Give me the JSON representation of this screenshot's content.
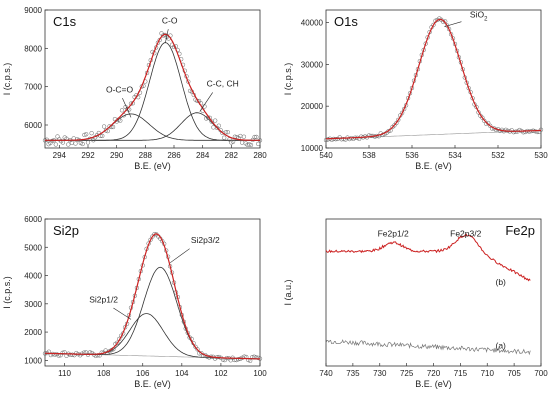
{
  "chart_data": [
    {
      "type": "line",
      "title": "C1s",
      "xlabel": "B.E. (eV)",
      "ylabel": "I (c.p.s.)",
      "xlim": [
        295,
        280
      ],
      "ylim": [
        5400,
        9000
      ],
      "xticks": [
        294,
        292,
        290,
        288,
        286,
        284,
        282,
        280
      ],
      "yticks": [
        6000,
        7000,
        8000,
        9000
      ],
      "baseline": 5600,
      "peaks": [
        {
          "label": "C-O",
          "center": 286.6,
          "height": 2550,
          "fwhm": 2.6
        },
        {
          "label": "O-C=O",
          "center": 289.0,
          "height": 690,
          "fwhm": 3.0
        },
        {
          "label": "C-C, CH",
          "center": 284.4,
          "height": 720,
          "fwhm": 2.6
        }
      ],
      "annotations": [
        "O-C=O",
        "C-O",
        "C-C, CH"
      ],
      "series": [
        {
          "role": "data",
          "style": "open-circles"
        },
        {
          "role": "envelope-fit",
          "color": "#cc2222"
        },
        {
          "role": "components",
          "color": "#333333"
        }
      ]
    },
    {
      "type": "line",
      "title": "O1s",
      "xlabel": "B.E. (eV)",
      "ylabel": "I (c.p.s.)",
      "xlim": [
        540,
        530
      ],
      "ylim": [
        10000,
        43000
      ],
      "xticks": [
        540,
        538,
        536,
        534,
        532,
        530
      ],
      "yticks": [
        10000,
        20000,
        30000,
        40000
      ],
      "baseline_from": 12200,
      "baseline_to": 14200,
      "peaks": [
        {
          "label": "SiO2",
          "center": 534.7,
          "height": 27500,
          "fwhm": 2.3
        }
      ],
      "annotation_main": "SiO",
      "annotation_sub": "2",
      "series": [
        {
          "role": "data",
          "style": "open-circles"
        },
        {
          "role": "fit",
          "color": "#cc2222"
        }
      ]
    },
    {
      "type": "line",
      "title": "Si2p",
      "xlabel": "B.E. (eV)",
      "ylabel": "I (c.p.s.)",
      "xlim": [
        111,
        100
      ],
      "ylim": [
        800,
        6000
      ],
      "xticks": [
        110,
        108,
        106,
        104,
        102,
        100
      ],
      "yticks": [
        1000,
        2000,
        3000,
        4000,
        5000,
        6000
      ],
      "baseline_from": 1250,
      "baseline_to": 1050,
      "peaks": [
        {
          "label": "Si2p1/2",
          "center": 105.8,
          "height": 1500,
          "fwhm": 2.0
        },
        {
          "label": "Si2p3/2",
          "center": 105.1,
          "height": 3150,
          "fwhm": 2.0
        }
      ],
      "annotations": [
        "Si2p1/2",
        "Si2p3/2"
      ],
      "series": [
        {
          "role": "data",
          "style": "open-circles"
        },
        {
          "role": "envelope-fit",
          "color": "#cc2222"
        },
        {
          "role": "components",
          "color": "#333333"
        }
      ]
    },
    {
      "type": "line",
      "title": "Fe2p",
      "xlabel": "B.E. (eV)",
      "ylabel": "I (a.u.)",
      "xlim": [
        740,
        700
      ],
      "ylim": [
        0,
        100
      ],
      "xticks": [
        740,
        735,
        730,
        725,
        720,
        715,
        710,
        705,
        700
      ],
      "yticks": [],
      "peaks": [
        {
          "label": "Fe2p1/2",
          "center": 727.5,
          "height": 6
        },
        {
          "label": "Fe2p3/2",
          "center": 714.0,
          "height": 11
        }
      ],
      "curve_labels": [
        "(b)",
        "(a)"
      ],
      "series": [
        {
          "name": "(b)",
          "color": "#cc2222"
        },
        {
          "name": "(a)",
          "color": "#777777"
        }
      ]
    }
  ]
}
